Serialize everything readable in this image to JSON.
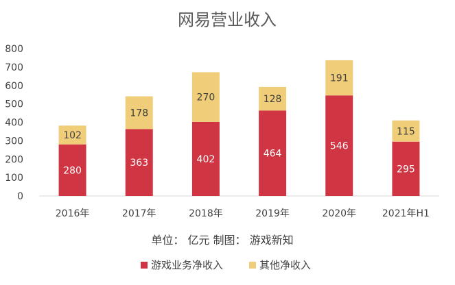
{
  "chart_data": {
    "type": "bar",
    "stacked": true,
    "title": "网易营业收入",
    "categories": [
      "2016年",
      "2017年",
      "2018年",
      "2019年",
      "2020年",
      "2021年H1"
    ],
    "series": [
      {
        "name": "游戏业务净收入",
        "values": [
          280,
          363,
          402,
          464,
          546,
          295
        ],
        "color": "#cf3542"
      },
      {
        "name": "其他净收入",
        "values": [
          102,
          178,
          270,
          128,
          191,
          115
        ],
        "color": "#f0cd79"
      }
    ],
    "ylim": [
      0,
      800
    ],
    "yticks": [
      0,
      100,
      200,
      300,
      400,
      500,
      600,
      700,
      800
    ],
    "grid": false,
    "legend_position": "bottom",
    "annotation": "单位： 亿元  制图： 游戏新知"
  }
}
